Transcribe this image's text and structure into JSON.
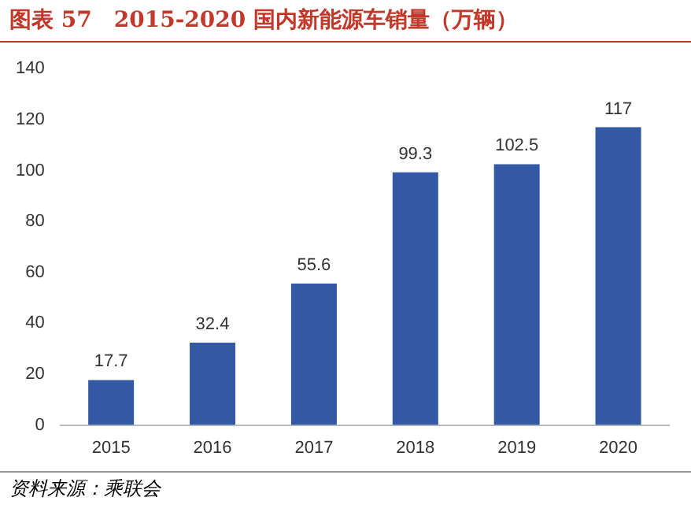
{
  "chart_data": {
    "type": "bar",
    "title": "图表 57　2015-2020 国内新能源车销量（万辆）",
    "categories": [
      "2015",
      "2016",
      "2017",
      "2018",
      "2019",
      "2020"
    ],
    "values": [
      17.7,
      32.4,
      55.6,
      99.3,
      102.5,
      117
    ],
    "color": "#3358a4",
    "ylim": [
      0,
      140
    ],
    "yticks": [
      0,
      20,
      40,
      60,
      80,
      100,
      120,
      140
    ],
    "grid": false,
    "legend": false,
    "data_labels": true,
    "annotations": [
      "资料来源：乘联会"
    ]
  }
}
